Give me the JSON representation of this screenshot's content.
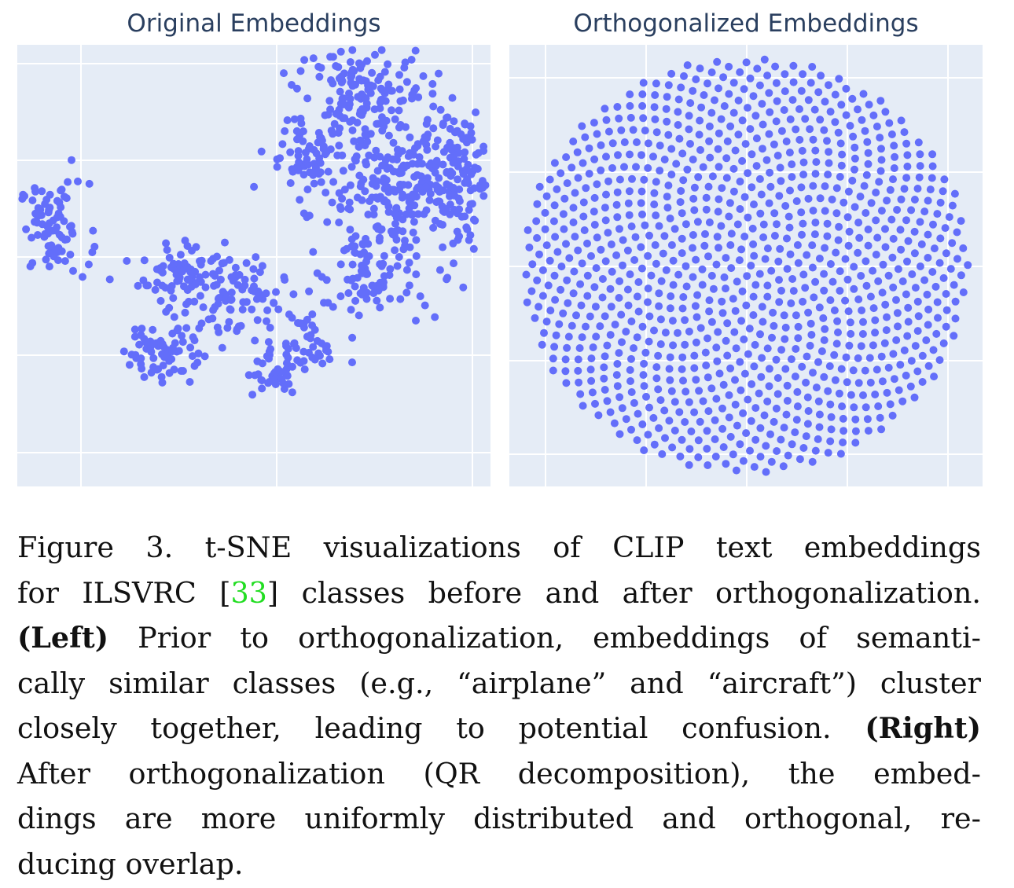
{
  "chart_data": [
    {
      "type": "scatter",
      "title": "Original Embeddings",
      "xlabel": "",
      "ylabel": "",
      "grid": true,
      "background": "#e5ecf6",
      "marker_color": "#636efa",
      "point_count": 1000,
      "x_range": [
        -62,
        53
      ],
      "y_range": [
        -68,
        86
      ],
      "clusters": [
        {
          "name": "left-blob",
          "cx": -53,
          "cy": 22,
          "sx": 4.2,
          "sy": 8,
          "n": 80
        },
        {
          "name": "lower-left-a",
          "cx": -20,
          "cy": 5,
          "sx": 6,
          "sy": 6,
          "n": 90
        },
        {
          "name": "lower-left-b",
          "cx": -27,
          "cy": -20,
          "sx": 4.5,
          "sy": 6,
          "n": 70
        },
        {
          "name": "lower-mid-a",
          "cx": -7,
          "cy": -3,
          "sx": 5,
          "sy": 7,
          "n": 60
        },
        {
          "name": "lower-mid-b",
          "cx": 0,
          "cy": -28,
          "sx": 3.5,
          "sy": 4,
          "n": 40
        },
        {
          "name": "lower-mid-c",
          "cx": 9,
          "cy": -18,
          "sx": 4,
          "sy": 6,
          "n": 40
        },
        {
          "name": "mid-upper-left",
          "cx": 8,
          "cy": 47,
          "sx": 5,
          "sy": 8,
          "n": 70
        },
        {
          "name": "upper-center",
          "cx": 30,
          "cy": 35,
          "sx": 9,
          "sy": 17,
          "n": 280
        },
        {
          "name": "top",
          "cx": 22,
          "cy": 70,
          "sx": 8,
          "sy": 8,
          "n": 110
        },
        {
          "name": "right",
          "cx": 46,
          "cy": 42,
          "sx": 5,
          "sy": 12,
          "n": 100
        },
        {
          "name": "center-down",
          "cx": 24,
          "cy": 5,
          "sx": 7,
          "sy": 6,
          "n": 60
        }
      ]
    },
    {
      "type": "scatter",
      "title": "Orthogonalized Embeddings",
      "xlabel": "",
      "ylabel": "",
      "grid": true,
      "background": "#e5ecf6",
      "marker_color": "#636efa",
      "point_count": 1000,
      "layout": "uniform-disk",
      "x_range": [
        -1.06,
        1.06
      ],
      "y_range": [
        -1.06,
        1.06
      ]
    }
  ],
  "caption": {
    "lines": [
      [
        "Figure 3.  t-SNE visualizations of CLIP text embeddings"
      ],
      [
        "for ILSVRC [",
        "33",
        "] classes before and after orthogonalization."
      ],
      [
        "(Left)",
        " Prior to orthogonalization, embeddings of semanti-"
      ],
      [
        "cally similar classes (e.g., “airplane” and “aircraft”) cluster"
      ],
      [
        "closely together, leading to potential confusion.  ",
        "(Right)"
      ],
      [
        "After orthogonalization (QR decomposition), the embed-"
      ],
      [
        "dings are more uniformly distributed and orthogonal, re-"
      ],
      [
        "ducing overlap."
      ]
    ]
  }
}
